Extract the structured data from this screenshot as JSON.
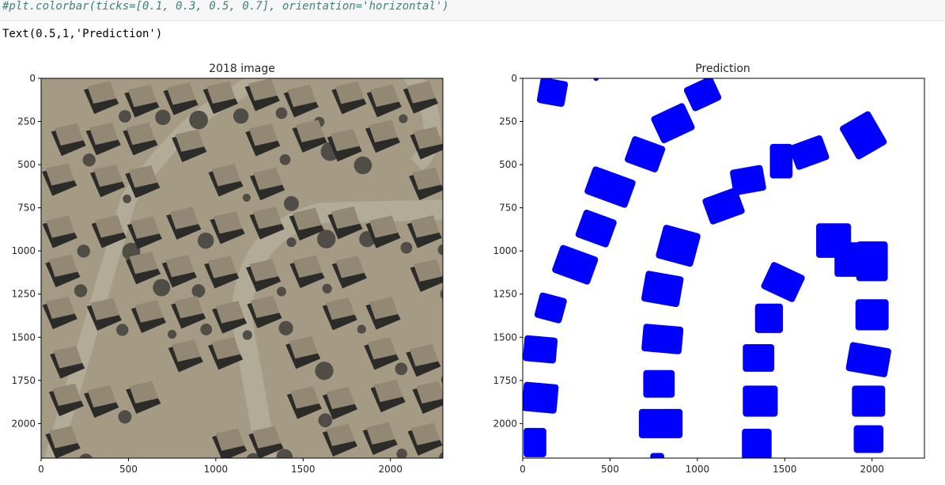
{
  "notebook": {
    "code_line": "#plt.colorbar(ticks=[0.1, 0.3, 0.5, 0.7], orientation='horizontal')",
    "output_text": "Text(0.5,1,'Prediction')"
  },
  "colors": {
    "prediction_fill": "#0000ff",
    "road": "#b2ab98",
    "ground": "#a59a84",
    "shadow": "#2b2b29",
    "roof": "#938874",
    "tree": "#4f4d45"
  },
  "chart_data": [
    {
      "type": "image",
      "title": "2018 image",
      "xlim": [
        0,
        2300
      ],
      "ylim": [
        2200,
        0
      ],
      "xticks": [
        "0",
        "500",
        "1000",
        "1500",
        "2000"
      ],
      "yticks": [
        "0",
        "250",
        "500",
        "750",
        "1000",
        "1250",
        "1500",
        "1750",
        "2000"
      ]
    },
    {
      "type": "image",
      "title": "Prediction",
      "xlim": [
        0,
        2300
      ],
      "ylim": [
        2200,
        0
      ],
      "xticks": [
        "0",
        "500",
        "1000",
        "1500",
        "2000"
      ],
      "yticks": [
        "0",
        "250",
        "500",
        "750",
        "1000",
        "1250",
        "1500",
        "1750",
        "2000"
      ]
    }
  ]
}
